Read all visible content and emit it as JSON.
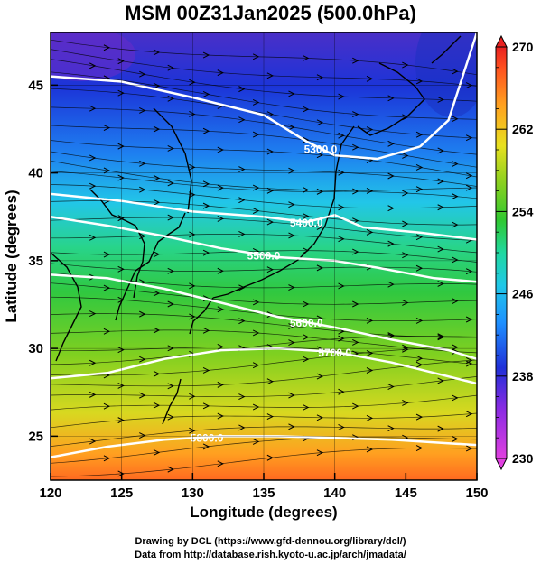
{
  "title": "MSM 00Z31Jan2025 (500.0hPa)",
  "xlabel": "Longitude (degrees)",
  "ylabel": "Latitude (degrees)",
  "credits": [
    "Drawing by DCL (https://www.gfd-dennou.org/library/dcl/)",
    "Data from http://database.rish.kyoto-u.ac.jp/arch/jmadata/"
  ],
  "x_ticks": [
    120,
    125,
    130,
    135,
    140,
    145,
    150
  ],
  "y_ticks": [
    25,
    30,
    35,
    40,
    45
  ],
  "colorbar": {
    "min": 230,
    "max": 270,
    "labels": [
      230,
      238,
      246,
      254,
      262,
      270
    ],
    "colors": [
      "#e040e0",
      "#8a2be2",
      "#2030d8",
      "#1e90ff",
      "#20c8e8",
      "#20d8a0",
      "#30c830",
      "#8ad020",
      "#e8e020",
      "#ffa020",
      "#ff5020",
      "#e82020"
    ]
  },
  "contours": [
    {
      "label": "5300.0",
      "label_lon": 139,
      "points": [
        [
          120,
          45.5
        ],
        [
          125,
          45.2
        ],
        [
          130,
          44.3
        ],
        [
          135,
          43.3
        ],
        [
          138,
          41.8
        ],
        [
          140,
          41.0
        ],
        [
          143,
          40.8
        ],
        [
          146,
          41.5
        ],
        [
          148,
          43
        ],
        [
          150,
          48
        ]
      ]
    },
    {
      "label": "5400.0",
      "label_lon": 138,
      "points": [
        [
          120,
          38.8
        ],
        [
          125,
          38.4
        ],
        [
          130,
          37.8
        ],
        [
          135,
          37.5
        ],
        [
          138,
          37.2
        ],
        [
          140,
          37.6
        ],
        [
          142,
          36.9
        ],
        [
          146,
          36.6
        ],
        [
          150,
          36.2
        ]
      ]
    },
    {
      "label": "5500.0",
      "label_lon": 135,
      "points": [
        [
          120,
          37.5
        ],
        [
          124,
          37
        ],
        [
          128,
          36.4
        ],
        [
          132,
          35.7
        ],
        [
          136,
          35.2
        ],
        [
          140,
          35.0
        ],
        [
          143,
          34.6
        ],
        [
          147,
          34.0
        ],
        [
          150,
          33.8
        ]
      ]
    },
    {
      "label": "5600.0",
      "label_lon": 138,
      "points": [
        [
          120,
          34.2
        ],
        [
          124,
          34
        ],
        [
          128,
          33.4
        ],
        [
          132,
          32.6
        ],
        [
          136,
          31.8
        ],
        [
          140,
          31.2
        ],
        [
          144,
          30.5
        ],
        [
          148,
          29.9
        ],
        [
          150,
          29.4
        ]
      ]
    },
    {
      "label": "5700.0",
      "label_lon": 140,
      "points": [
        [
          120,
          28.3
        ],
        [
          124,
          28.6
        ],
        [
          128,
          29.4
        ],
        [
          132,
          29.9
        ],
        [
          136,
          30.0
        ],
        [
          140,
          29.8
        ],
        [
          144,
          29.2
        ],
        [
          148,
          28.4
        ],
        [
          150,
          28.0
        ]
      ]
    },
    {
      "label": "5800.0",
      "label_lon": 131,
      "points": [
        [
          120,
          23.8
        ],
        [
          124,
          24.4
        ],
        [
          128,
          24.8
        ],
        [
          132,
          25.0
        ],
        [
          136,
          25.0
        ],
        [
          140,
          24.9
        ],
        [
          144,
          24.8
        ],
        [
          148,
          24.6
        ],
        [
          150,
          24.5
        ]
      ]
    }
  ],
  "temperature_field": {
    "description_levels_by_lat": [
      {
        "lat": 48,
        "value": 236
      },
      {
        "lat": 44,
        "value": 238
      },
      {
        "lat": 41,
        "value": 243
      },
      {
        "lat": 38,
        "value": 248
      },
      {
        "lat": 35,
        "value": 253
      },
      {
        "lat": 31,
        "value": 257
      },
      {
        "lat": 27,
        "value": 260
      },
      {
        "lat": 24,
        "value": 264
      },
      {
        "lat": 22.5,
        "value": 266
      }
    ]
  }
}
